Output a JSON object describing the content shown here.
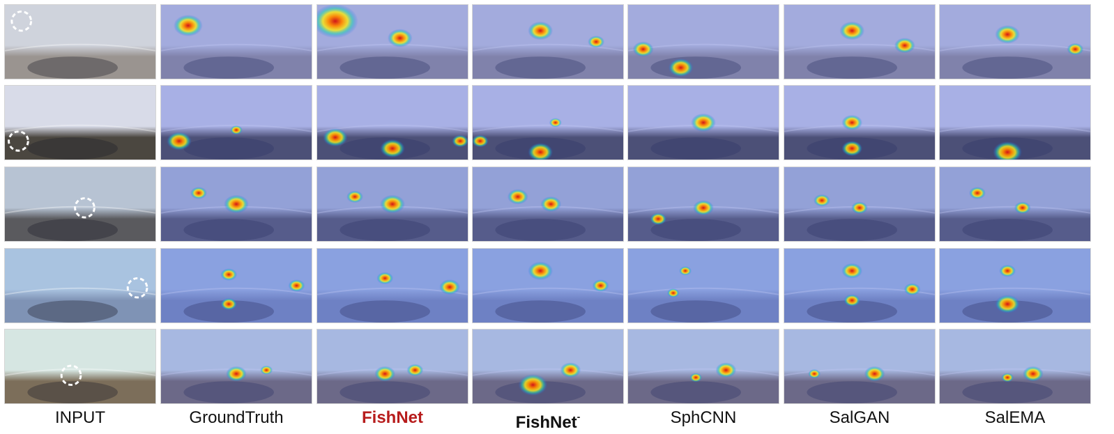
{
  "columns": [
    {
      "label": "INPUT",
      "style": "normal"
    },
    {
      "label": "GroundTruth",
      "style": "normal"
    },
    {
      "label": "FishNet",
      "style": "red"
    },
    {
      "label": "FishNet",
      "superscript": "-",
      "style": "bold"
    },
    {
      "label": "SphCNN",
      "style": "normal"
    },
    {
      "label": "SalGAN",
      "style": "normal"
    },
    {
      "label": "SalEMA",
      "style": "normal"
    }
  ],
  "rows": [
    {
      "scene": "indoor-room",
      "sky": "#cfd3dc",
      "ground": "#9a9490",
      "ring": [
        0.11,
        0.22
      ],
      "hotspots": [
        [],
        [
          [
            0.18,
            0.28,
            0.35
          ]
        ],
        [
          [
            0.12,
            0.22,
            0.55
          ],
          [
            0.55,
            0.45,
            0.3
          ]
        ],
        [
          [
            0.45,
            0.35,
            0.3
          ],
          [
            0.82,
            0.5,
            0.2
          ]
        ],
        [
          [
            0.1,
            0.6,
            0.25
          ],
          [
            0.35,
            0.85,
            0.3
          ]
        ],
        [
          [
            0.45,
            0.35,
            0.3
          ],
          [
            0.8,
            0.55,
            0.25
          ]
        ],
        [
          [
            0.45,
            0.4,
            0.3
          ],
          [
            0.9,
            0.6,
            0.2
          ]
        ]
      ]
    },
    {
      "scene": "outdoor-cliff",
      "sky": "#d8dbe8",
      "ground": "#4b4740",
      "ring": [
        0.09,
        0.75
      ],
      "hotspots": [
        [],
        [
          [
            0.12,
            0.75,
            0.3
          ],
          [
            0.5,
            0.6,
            0.15
          ]
        ],
        [
          [
            0.12,
            0.7,
            0.3
          ],
          [
            0.5,
            0.85,
            0.3
          ],
          [
            0.95,
            0.75,
            0.2
          ]
        ],
        [
          [
            0.05,
            0.75,
            0.2
          ],
          [
            0.45,
            0.9,
            0.3
          ],
          [
            0.55,
            0.5,
            0.15
          ]
        ],
        [
          [
            0.5,
            0.5,
            0.3
          ]
        ],
        [
          [
            0.45,
            0.5,
            0.25
          ],
          [
            0.45,
            0.85,
            0.25
          ]
        ],
        [
          [
            0.45,
            0.9,
            0.35
          ]
        ]
      ]
    },
    {
      "scene": "road-runners",
      "sky": "#b7c3d3",
      "ground": "#5a5a5e",
      "ring": [
        0.53,
        0.55
      ],
      "hotspots": [
        [],
        [
          [
            0.5,
            0.5,
            0.3
          ],
          [
            0.25,
            0.35,
            0.2
          ]
        ],
        [
          [
            0.5,
            0.5,
            0.3
          ],
          [
            0.25,
            0.4,
            0.2
          ]
        ],
        [
          [
            0.3,
            0.4,
            0.25
          ],
          [
            0.52,
            0.5,
            0.25
          ]
        ],
        [
          [
            0.5,
            0.55,
            0.25
          ],
          [
            0.2,
            0.7,
            0.2
          ]
        ],
        [
          [
            0.25,
            0.45,
            0.2
          ],
          [
            0.5,
            0.55,
            0.2
          ]
        ],
        [
          [
            0.25,
            0.35,
            0.2
          ],
          [
            0.55,
            0.55,
            0.2
          ]
        ]
      ]
    },
    {
      "scene": "wingsuit",
      "sky": "#a9c3e0",
      "ground": "#7f93b5",
      "ring": [
        0.88,
        0.53
      ],
      "hotspots": [
        [],
        [
          [
            0.45,
            0.35,
            0.2
          ],
          [
            0.9,
            0.5,
            0.2
          ],
          [
            0.45,
            0.75,
            0.2
          ]
        ],
        [
          [
            0.45,
            0.4,
            0.2
          ],
          [
            0.88,
            0.52,
            0.25
          ]
        ],
        [
          [
            0.45,
            0.3,
            0.3
          ],
          [
            0.85,
            0.5,
            0.2
          ]
        ],
        [
          [
            0.38,
            0.3,
            0.15
          ],
          [
            0.3,
            0.6,
            0.15
          ]
        ],
        [
          [
            0.45,
            0.3,
            0.25
          ],
          [
            0.45,
            0.7,
            0.2
          ],
          [
            0.85,
            0.55,
            0.2
          ]
        ],
        [
          [
            0.45,
            0.3,
            0.2
          ],
          [
            0.45,
            0.75,
            0.3
          ]
        ]
      ]
    },
    {
      "scene": "playground",
      "sky": "#d6e6e2",
      "ground": "#7c6e5a",
      "ring": [
        0.44,
        0.62
      ],
      "hotspots": [
        [],
        [
          [
            0.5,
            0.6,
            0.25
          ],
          [
            0.7,
            0.55,
            0.15
          ]
        ],
        [
          [
            0.45,
            0.6,
            0.25
          ],
          [
            0.65,
            0.55,
            0.2
          ]
        ],
        [
          [
            0.4,
            0.75,
            0.35
          ],
          [
            0.65,
            0.55,
            0.25
          ]
        ],
        [
          [
            0.65,
            0.55,
            0.25
          ],
          [
            0.45,
            0.65,
            0.15
          ]
        ],
        [
          [
            0.6,
            0.6,
            0.25
          ],
          [
            0.2,
            0.6,
            0.15
          ]
        ],
        [
          [
            0.62,
            0.6,
            0.25
          ],
          [
            0.45,
            0.65,
            0.15
          ]
        ]
      ]
    }
  ],
  "colors": {
    "accent_red": "#b71c1c",
    "overlay_blue": "#5060e0",
    "border": "#d5d5d5"
  }
}
